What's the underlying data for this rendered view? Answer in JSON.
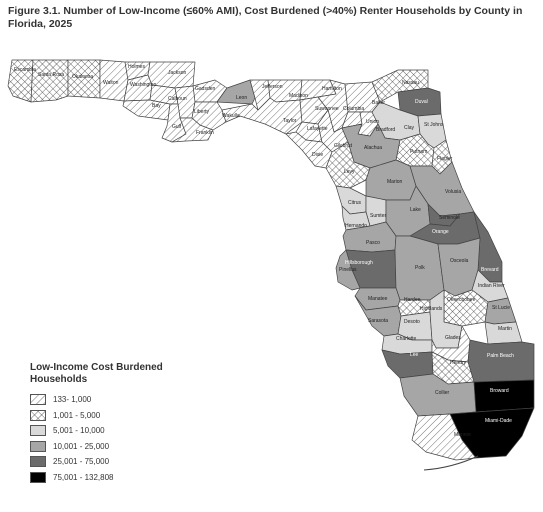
{
  "title": "Figure 3.1. Number of Low-Income (≤60% AMI), Cost Burdened (>40%) Renter Households by County in Florida, 2025",
  "legend": {
    "title": "Low-Income Cost Burdened Households",
    "items": [
      {
        "label": "133- 1,000",
        "pattern": "diagonal-hatch"
      },
      {
        "label": "1,001 - 5,000",
        "pattern": "cross-hatch"
      },
      {
        "label": "5,001 - 10,000",
        "color": "#d9d9d9"
      },
      {
        "label": "10,001 - 25,000",
        "color": "#a6a6a6"
      },
      {
        "label": "25,001 - 75,000",
        "color": "#6b6b6b"
      },
      {
        "label": "75,001 - 132,808",
        "color": "#000000"
      }
    ]
  },
  "counties": {
    "escambia": "Escambia",
    "santa_rosa": "Santa Rosa",
    "okaloosa": "Okaloosa",
    "walton": "Walton",
    "holmes": "Holmes",
    "washington": "Washington",
    "jackson": "Jackson",
    "bay": "Bay",
    "calhoun": "Calhoun",
    "gadsden": "Gadsden",
    "gulf": "Gulf",
    "liberty": "Liberty",
    "franklin": "Franklin",
    "wakulla": "Wakulla",
    "leon": "Leon",
    "jefferson": "Jefferson",
    "madison": "Madison",
    "hamilton": "Hamilton",
    "taylor": "Taylor",
    "suwannee": "Suwannee",
    "columbia": "Columbia",
    "lafayette": "Lafayette",
    "dixie": "Dixie",
    "gilchrist": "Gilchrist",
    "union": "Union",
    "bradford": "Bradford",
    "baker": "Baker",
    "nassau": "Nassau",
    "duval": "Duval",
    "clay": "Clay",
    "st_johns": "St Johns",
    "putnam": "Putnam",
    "alachua": "Alachua",
    "levy": "Levy",
    "flagler": "Flagler",
    "marion": "Marion",
    "volusia": "Volusia",
    "citrus": "Citrus",
    "sumter": "Sumter",
    "lake": "Lake",
    "seminole": "Seminole",
    "hernando": "Hernando",
    "orange": "Orange",
    "pasco": "Pasco",
    "pinellas": "Pinellas",
    "hillsborough": "Hillsborough",
    "polk": "Polk",
    "osceola": "Osceola",
    "brevard": "Brevard",
    "indian_river": "Indian River",
    "manatee": "Manatee",
    "hardee": "Hardee",
    "okeechobee": "Okeechobee",
    "st_lucie": "St Lucie",
    "sarasota": "Sarasota",
    "desoto": "Desoto",
    "highlands": "Highlands",
    "martin": "Martin",
    "charlotte": "Charlotte",
    "glades": "Glades",
    "palm_beach": "Palm Beach",
    "lee": "Lee",
    "hendry": "Hendry",
    "broward": "Broward",
    "collier": "Collier",
    "miami_dade": "Miami-Dade",
    "monroe": "Monroe"
  }
}
